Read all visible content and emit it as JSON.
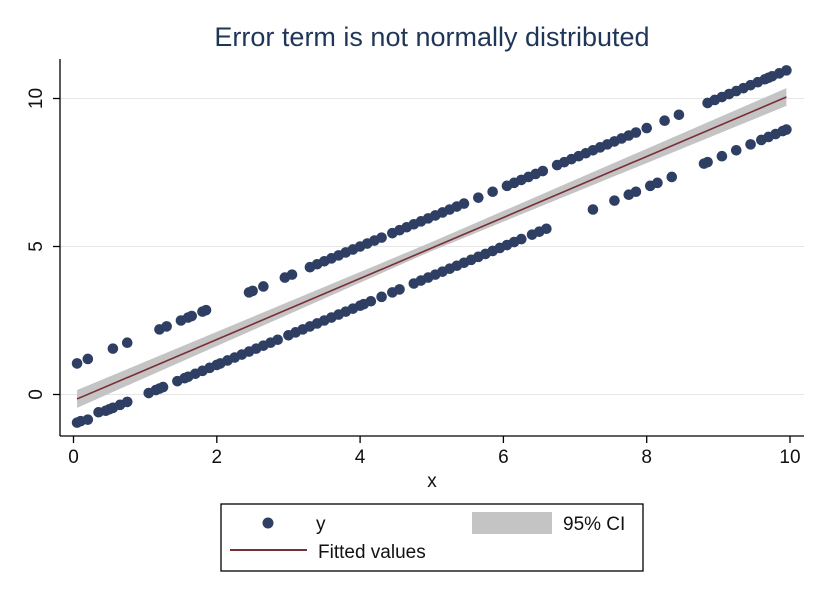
{
  "chart_data": {
    "type": "scatter",
    "title": "Error term is not normally distributed",
    "xlabel": "x",
    "ylabel": "",
    "xlim": [
      0,
      10
    ],
    "ylim": [
      -1,
      11
    ],
    "x_ticks": [
      "0",
      "2",
      "4",
      "6",
      "8",
      "10"
    ],
    "y_ticks": [
      "0",
      "5",
      "10"
    ],
    "grid": "horizontal",
    "legend_position": "bottom",
    "colors": {
      "points": "#2f3e63",
      "fit_line": "#7a2e35",
      "ci_band": "#c4c4c4",
      "grid": "#e6e6e6",
      "title": "#1f3658"
    },
    "legend": [
      {
        "label": "y",
        "symbol": "dot"
      },
      {
        "label": "95% CI",
        "symbol": "band"
      },
      {
        "label": "Fitted values",
        "symbol": "line"
      }
    ],
    "series": [
      {
        "name": "y",
        "kind": "scatter",
        "x": [
          0.05,
          0.1,
          0.2,
          0.35,
          0.45,
          0.5,
          0.55,
          0.65,
          0.75,
          1.05,
          1.15,
          1.2,
          1.25,
          1.45,
          1.55,
          1.6,
          1.7,
          1.8,
          1.9,
          2.0,
          2.05,
          2.15,
          2.25,
          2.35,
          2.45,
          2.55,
          2.65,
          2.75,
          2.85,
          3.0,
          3.1,
          3.2,
          3.3,
          3.4,
          3.5,
          3.6,
          3.7,
          3.8,
          3.9,
          4.0,
          4.05,
          4.15,
          4.3,
          4.45,
          4.55,
          4.75,
          4.85,
          4.95,
          5.05,
          5.15,
          5.25,
          5.35,
          5.45,
          5.55,
          5.65,
          5.75,
          5.85,
          5.95,
          6.05,
          6.15,
          6.25,
          6.4,
          6.5,
          6.6,
          7.25,
          7.55,
          7.75,
          7.85,
          8.05,
          8.15,
          8.35,
          8.8,
          8.85,
          9.05,
          9.25,
          9.45,
          9.6,
          9.7,
          9.8,
          9.9,
          9.95,
          0.05,
          0.2,
          0.55,
          0.75,
          1.2,
          1.3,
          1.5,
          1.6,
          1.65,
          1.8,
          1.85,
          2.45,
          2.5,
          2.65,
          2.95,
          3.05,
          3.3,
          3.4,
          3.5,
          3.6,
          3.7,
          3.8,
          3.9,
          4.0,
          4.1,
          4.2,
          4.3,
          4.45,
          4.55,
          4.65,
          4.75,
          4.85,
          4.95,
          5.05,
          5.15,
          5.25,
          5.35,
          5.45,
          5.65,
          5.85,
          6.05,
          6.15,
          6.25,
          6.35,
          6.45,
          6.55,
          6.75,
          6.85,
          6.95,
          7.05,
          7.15,
          7.25,
          7.35,
          7.45,
          7.55,
          7.65,
          7.75,
          7.85,
          8.0,
          8.25,
          8.45,
          8.85,
          8.95,
          9.05,
          9.15,
          9.25,
          9.35,
          9.45,
          9.55,
          9.65,
          9.7,
          9.75,
          9.85,
          9.95
        ],
        "y": [
          -0.95,
          -0.9,
          -0.85,
          -0.6,
          -0.55,
          -0.5,
          -0.45,
          -0.35,
          -0.25,
          0.05,
          0.15,
          0.2,
          0.25,
          0.45,
          0.55,
          0.6,
          0.7,
          0.8,
          0.9,
          1.0,
          1.05,
          1.15,
          1.25,
          1.35,
          1.45,
          1.55,
          1.65,
          1.75,
          1.85,
          2.0,
          2.1,
          2.2,
          2.3,
          2.4,
          2.5,
          2.6,
          2.7,
          2.8,
          2.9,
          3.0,
          3.05,
          3.15,
          3.3,
          3.45,
          3.55,
          3.75,
          3.85,
          3.95,
          4.05,
          4.15,
          4.25,
          4.35,
          4.45,
          4.55,
          4.65,
          4.75,
          4.85,
          4.95,
          5.05,
          5.15,
          5.25,
          5.4,
          5.5,
          5.6,
          6.25,
          6.55,
          6.75,
          6.85,
          7.05,
          7.15,
          7.35,
          7.8,
          7.85,
          8.05,
          8.25,
          8.45,
          8.6,
          8.7,
          8.8,
          8.9,
          8.95,
          1.05,
          1.2,
          1.55,
          1.75,
          2.2,
          2.3,
          2.5,
          2.6,
          2.65,
          2.8,
          2.85,
          3.45,
          3.5,
          3.65,
          3.95,
          4.05,
          4.3,
          4.4,
          4.5,
          4.6,
          4.7,
          4.8,
          4.9,
          5.0,
          5.1,
          5.2,
          5.3,
          5.45,
          5.55,
          5.65,
          5.75,
          5.85,
          5.95,
          6.05,
          6.15,
          6.25,
          6.35,
          6.45,
          6.65,
          6.85,
          7.05,
          7.15,
          7.25,
          7.35,
          7.45,
          7.55,
          7.75,
          7.85,
          7.95,
          8.05,
          8.15,
          8.25,
          8.35,
          8.45,
          8.55,
          8.65,
          8.75,
          8.85,
          9.0,
          9.25,
          9.45,
          9.85,
          9.95,
          10.05,
          10.15,
          10.25,
          10.35,
          10.45,
          10.55,
          10.65,
          10.7,
          10.75,
          10.85,
          10.95
        ]
      },
      {
        "name": "Fitted values",
        "kind": "line",
        "x": [
          0.05,
          9.95
        ],
        "y": [
          -0.15,
          10.05
        ]
      },
      {
        "name": "95% CI",
        "kind": "band",
        "x": [
          0.05,
          5.0,
          9.95
        ],
        "lower": [
          -0.45,
          4.85,
          9.75
        ],
        "upper": [
          0.15,
          5.15,
          10.35
        ]
      }
    ]
  }
}
